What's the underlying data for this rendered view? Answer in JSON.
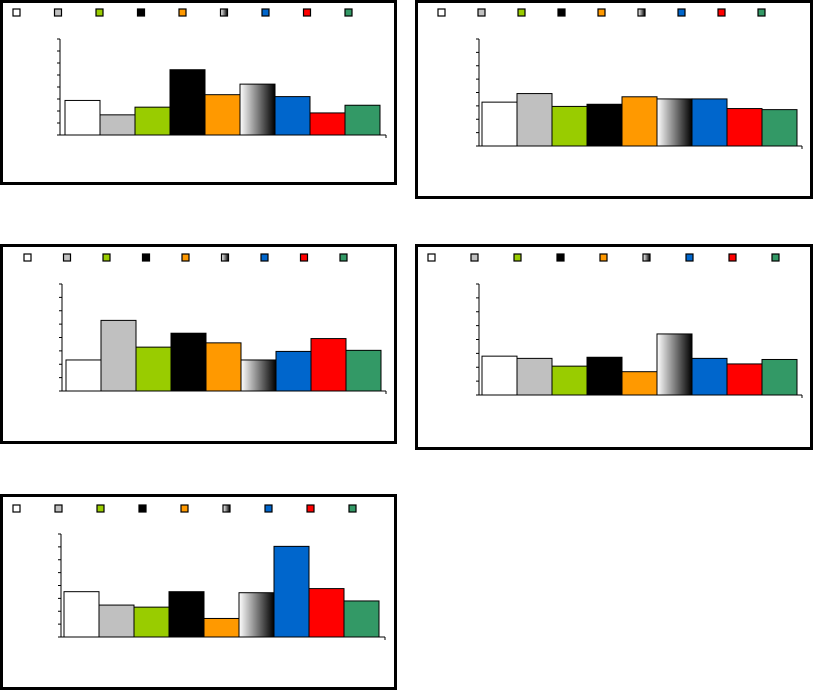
{
  "chart_data": [
    {
      "type": "bar",
      "categories": [
        "",
        "",
        "",
        "",
        "",
        "",
        "",
        "",
        ""
      ],
      "values": [
        36,
        21,
        29,
        68,
        42,
        53,
        40,
        23,
        31
      ],
      "ylim": [
        0,
        100
      ],
      "grid": false,
      "legend": "top",
      "title": "",
      "xlabel": "",
      "ylabel": ""
    },
    {
      "type": "bar",
      "categories": [
        "",
        "",
        "",
        "",
        "",
        "",
        "",
        "",
        ""
      ],
      "values": [
        41,
        49,
        37,
        39,
        46,
        44,
        44,
        35,
        34
      ],
      "ylim": [
        0,
        100
      ],
      "grid": false,
      "legend": "top",
      "title": "",
      "xlabel": "",
      "ylabel": ""
    },
    {
      "type": "bar",
      "categories": [
        "",
        "",
        "",
        "",
        "",
        "",
        "",
        "",
        ""
      ],
      "values": [
        29,
        66,
        41,
        54,
        45,
        29,
        37,
        49,
        38
      ],
      "ylim": [
        0,
        100
      ],
      "grid": false,
      "legend": "top",
      "title": "",
      "xlabel": "",
      "ylabel": ""
    },
    {
      "type": "bar",
      "categories": [
        "",
        "",
        "",
        "",
        "",
        "",
        "",
        "",
        ""
      ],
      "values": [
        35,
        33,
        26,
        34,
        21,
        55,
        33,
        28,
        32
      ],
      "ylim": [
        0,
        100
      ],
      "grid": false,
      "legend": "top",
      "title": "",
      "xlabel": "",
      "ylabel": ""
    },
    {
      "type": "bar",
      "categories": [
        "",
        "",
        "",
        "",
        "",
        "",
        "",
        "",
        ""
      ],
      "values": [
        44,
        31,
        29,
        44,
        18,
        43,
        88,
        47,
        35
      ],
      "ylim": [
        0,
        100
      ],
      "grid": false,
      "legend": "top",
      "title": "",
      "xlabel": "",
      "ylabel": ""
    }
  ],
  "colors": {
    "series": [
      "#ffffff",
      "#c0c0c0",
      "#99cc00",
      "#000000",
      "#ff9900",
      "gradient",
      "#0066cc",
      "#ff0000",
      "#339966"
    ],
    "gradient_stops": [
      "#000000",
      "#ffffff"
    ],
    "border": "#000000",
    "axis": "#000000"
  }
}
